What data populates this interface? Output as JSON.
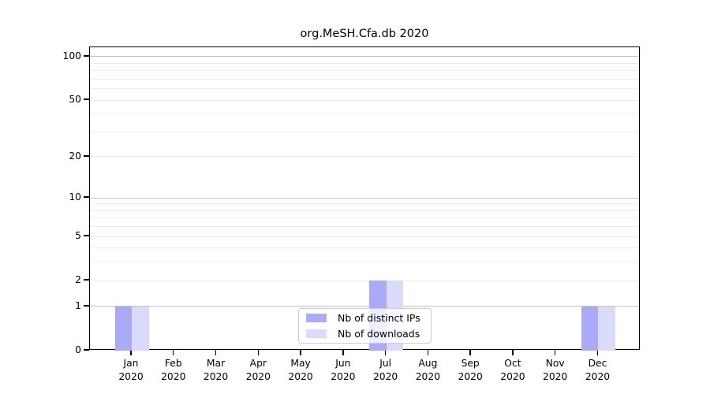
{
  "title": "org.MeSH.Cfa.db 2020",
  "chart_data": {
    "type": "bar",
    "title": "org.MeSH.Cfa.db 2020",
    "categories": [
      "Jan 2020",
      "Feb 2020",
      "Mar 2020",
      "Apr 2020",
      "May 2020",
      "Jun 2020",
      "Jul 2020",
      "Aug 2020",
      "Sep 2020",
      "Oct 2020",
      "Nov 2020",
      "Dec 2020"
    ],
    "series": [
      {
        "name": "Nb of distinct IPs",
        "color": "#aaaaf7",
        "values": [
          1,
          0,
          0,
          0,
          0,
          0,
          2,
          0,
          0,
          0,
          0,
          1
        ]
      },
      {
        "name": "Nb of downloads",
        "color": "#dadafa",
        "values": [
          1,
          0,
          0,
          0,
          0,
          0,
          2,
          0,
          0,
          0,
          0,
          1
        ]
      }
    ],
    "xlabel": "",
    "ylabel": "",
    "yscale": "log1p",
    "ylim": [
      0,
      116
    ],
    "yticks": [
      0,
      1,
      2,
      5,
      10,
      20,
      50,
      100
    ],
    "grid": {
      "major_values": [
        1,
        10,
        100
      ],
      "minor_values": [
        2,
        3,
        4,
        5,
        6,
        7,
        8,
        9,
        20,
        30,
        40,
        50,
        60,
        70,
        80,
        90
      ],
      "major_color": "#c3c3c3",
      "minor_color": "#ededed"
    },
    "legend": {
      "position": "lower center",
      "entries": [
        "Nb of distinct IPs",
        "Nb of downloads"
      ]
    },
    "colors": {
      "spine": "#000000",
      "background": "#ffffff",
      "legend_border": "#cccccc",
      "text": "#000000"
    }
  }
}
